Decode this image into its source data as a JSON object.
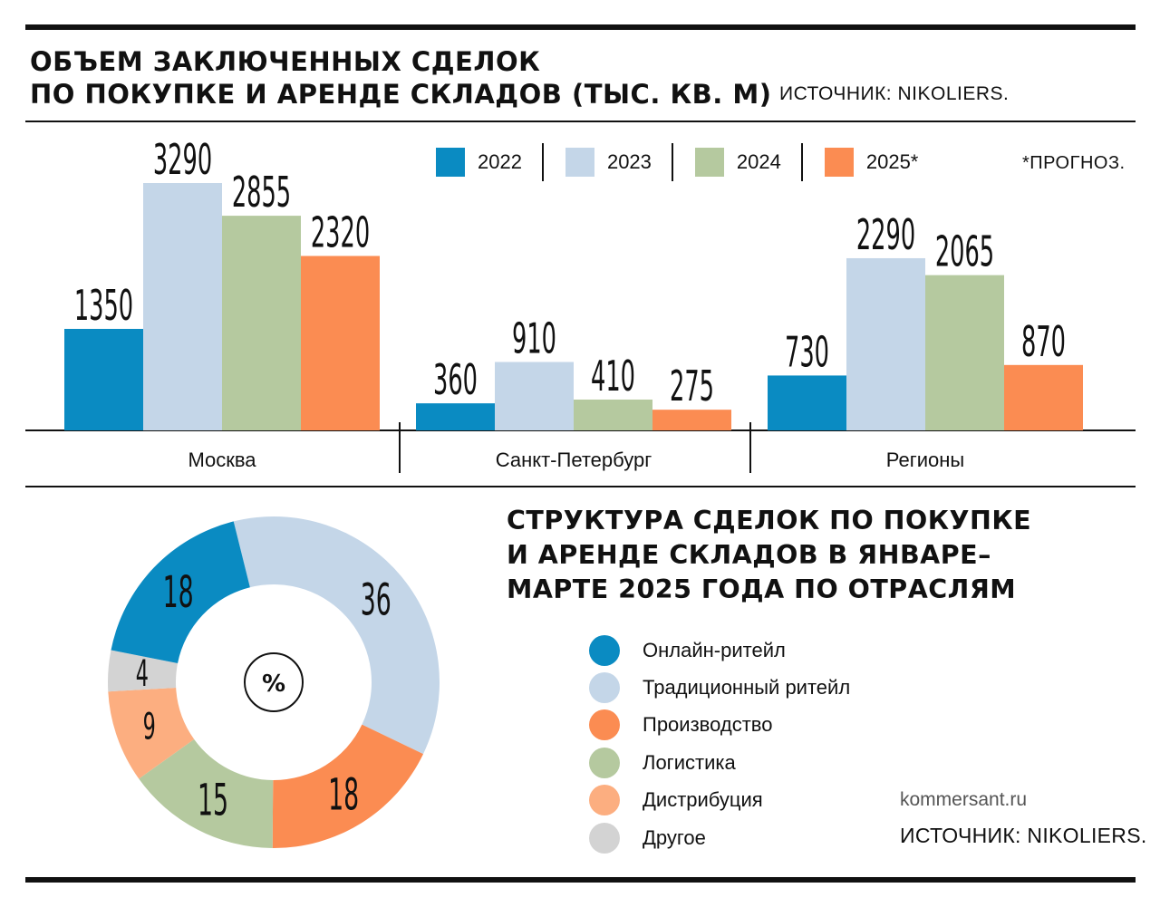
{
  "bar_chart_title": [
    "ОБЪЕМ ЗАКЛЮЧЕННЫХ СДЕЛОК",
    "ПО ПОКУПКЕ И АРЕНДЕ СКЛАДОВ (ТЫС. КВ. М)"
  ],
  "bar_chart_source": "ИСТОЧНИК: NIKOLIERS.",
  "bar_chart_note": "*ПРОГНОЗ.",
  "pie_chart_title": [
    "СТРУКТУРА СДЕЛОК ПО ПОКУПКЕ",
    "И АРЕНДЕ СКЛАДОВ В ЯНВАРЕ–",
    "МАРТЕ 2025 ГОДА ПО ОТРАСЛЯМ"
  ],
  "pie_center_label": "%",
  "site": "kommersant.ru",
  "pie_chart_source": "ИСТОЧНИК: NIKOLIERS.",
  "chart_data": [
    {
      "type": "bar",
      "title": "ОБЪЕМ ЗАКЛЮЧЕННЫХ СДЕЛОК ПО ПОКУПКЕ И АРЕНДЕ СКЛАДОВ (ТЫС. КВ. М)",
      "categories": [
        "Москва",
        "Санкт-Петербург",
        "Регионы"
      ],
      "series": [
        {
          "name": "2022",
          "color": "#0a8bc2",
          "values": [
            1350,
            360,
            730
          ]
        },
        {
          "name": "2023",
          "color": "#c4d6e8",
          "values": [
            3290,
            910,
            2290
          ]
        },
        {
          "name": "2024",
          "color": "#b5c99f",
          "values": [
            2855,
            410,
            2065
          ]
        },
        {
          "name": "2025*",
          "color": "#fb8c52",
          "values": [
            2320,
            275,
            870
          ]
        }
      ],
      "ylim": [
        0,
        3290
      ],
      "legend_position": "top",
      "grid": false
    },
    {
      "type": "pie",
      "title": "СТРУКТУРА СДЕЛОК ПО ПОКУПКЕ И АРЕНДЕ СКЛАДОВ В ЯНВАРЕ–МАРТЕ 2025 ГОДА ПО ОТРАСЛЯМ",
      "unit": "%",
      "donut": true,
      "slices": [
        {
          "label": "Онлайн-ритейл",
          "value": 18,
          "color": "#0a8bc2"
        },
        {
          "label": "Традиционный ритейл",
          "value": 36,
          "color": "#c4d6e8"
        },
        {
          "label": "Производство",
          "value": 18,
          "color": "#fb8c52"
        },
        {
          "label": "Логистика",
          "value": 15,
          "color": "#b5c99f"
        },
        {
          "label": "Дистрибуция",
          "value": 9,
          "color": "#fcae80"
        },
        {
          "label": "Другое",
          "value": 4,
          "color": "#d3d3d3"
        }
      ],
      "legend_position": "right"
    }
  ]
}
